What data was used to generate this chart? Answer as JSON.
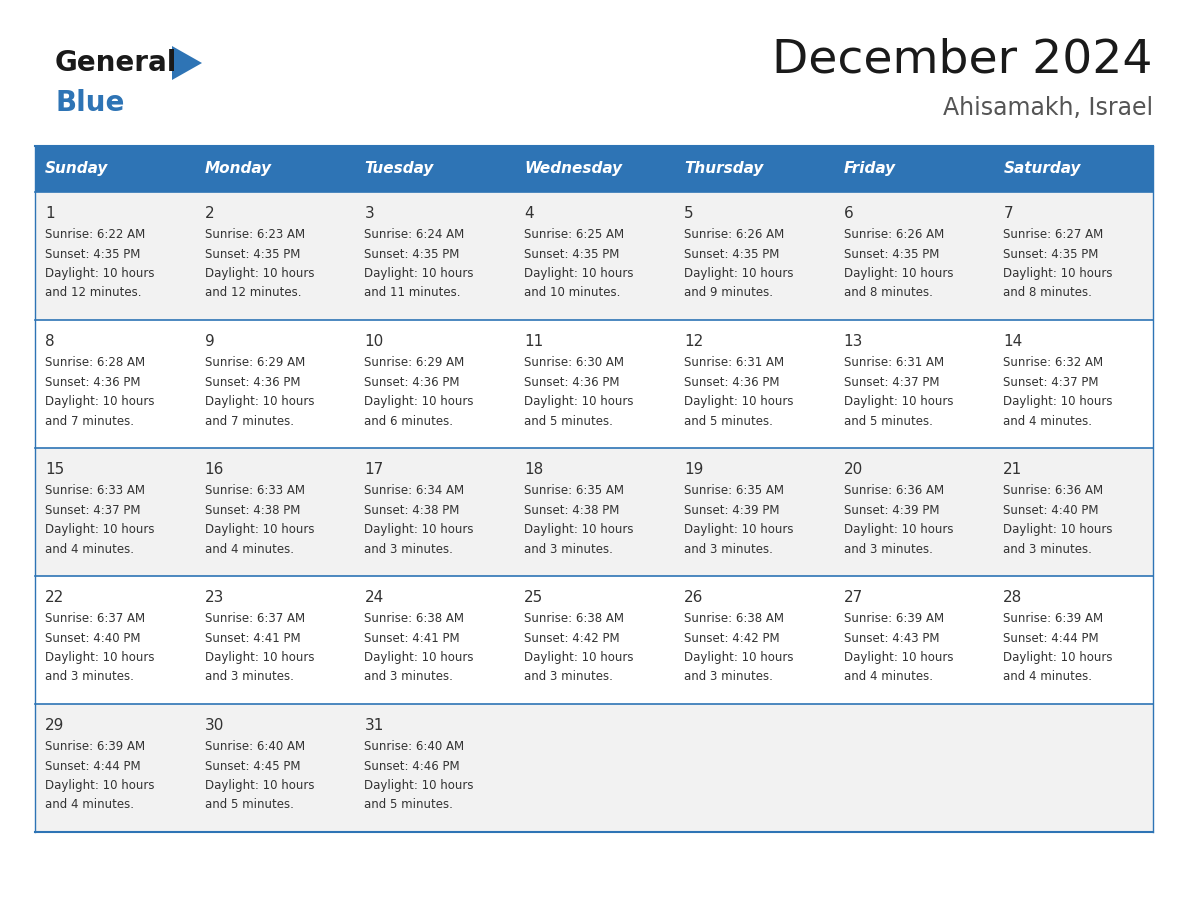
{
  "title": "December 2024",
  "subtitle": "Ahisamakh, Israel",
  "days_of_week": [
    "Sunday",
    "Monday",
    "Tuesday",
    "Wednesday",
    "Thursday",
    "Friday",
    "Saturday"
  ],
  "header_bg": "#2E74B5",
  "header_text": "#FFFFFF",
  "row_bg_odd": "#F2F2F2",
  "row_bg_even": "#FFFFFF",
  "cell_text_color": "#333333",
  "day_num_color": "#333333",
  "border_color": "#2E74B5",
  "title_color": "#1a1a1a",
  "subtitle_color": "#555555",
  "logo_general_color": "#1a1a1a",
  "logo_blue_color": "#2E74B5",
  "calendar_data": [
    [
      {
        "day": 1,
        "sunrise": "6:22 AM",
        "sunset": "4:35 PM",
        "daylight_hours": 10,
        "daylight_minutes": 12
      },
      {
        "day": 2,
        "sunrise": "6:23 AM",
        "sunset": "4:35 PM",
        "daylight_hours": 10,
        "daylight_minutes": 12
      },
      {
        "day": 3,
        "sunrise": "6:24 AM",
        "sunset": "4:35 PM",
        "daylight_hours": 10,
        "daylight_minutes": 11
      },
      {
        "day": 4,
        "sunrise": "6:25 AM",
        "sunset": "4:35 PM",
        "daylight_hours": 10,
        "daylight_minutes": 10
      },
      {
        "day": 5,
        "sunrise": "6:26 AM",
        "sunset": "4:35 PM",
        "daylight_hours": 10,
        "daylight_minutes": 9
      },
      {
        "day": 6,
        "sunrise": "6:26 AM",
        "sunset": "4:35 PM",
        "daylight_hours": 10,
        "daylight_minutes": 8
      },
      {
        "day": 7,
        "sunrise": "6:27 AM",
        "sunset": "4:35 PM",
        "daylight_hours": 10,
        "daylight_minutes": 8
      }
    ],
    [
      {
        "day": 8,
        "sunrise": "6:28 AM",
        "sunset": "4:36 PM",
        "daylight_hours": 10,
        "daylight_minutes": 7
      },
      {
        "day": 9,
        "sunrise": "6:29 AM",
        "sunset": "4:36 PM",
        "daylight_hours": 10,
        "daylight_minutes": 7
      },
      {
        "day": 10,
        "sunrise": "6:29 AM",
        "sunset": "4:36 PM",
        "daylight_hours": 10,
        "daylight_minutes": 6
      },
      {
        "day": 11,
        "sunrise": "6:30 AM",
        "sunset": "4:36 PM",
        "daylight_hours": 10,
        "daylight_minutes": 5
      },
      {
        "day": 12,
        "sunrise": "6:31 AM",
        "sunset": "4:36 PM",
        "daylight_hours": 10,
        "daylight_minutes": 5
      },
      {
        "day": 13,
        "sunrise": "6:31 AM",
        "sunset": "4:37 PM",
        "daylight_hours": 10,
        "daylight_minutes": 5
      },
      {
        "day": 14,
        "sunrise": "6:32 AM",
        "sunset": "4:37 PM",
        "daylight_hours": 10,
        "daylight_minutes": 4
      }
    ],
    [
      {
        "day": 15,
        "sunrise": "6:33 AM",
        "sunset": "4:37 PM",
        "daylight_hours": 10,
        "daylight_minutes": 4
      },
      {
        "day": 16,
        "sunrise": "6:33 AM",
        "sunset": "4:38 PM",
        "daylight_hours": 10,
        "daylight_minutes": 4
      },
      {
        "day": 17,
        "sunrise": "6:34 AM",
        "sunset": "4:38 PM",
        "daylight_hours": 10,
        "daylight_minutes": 3
      },
      {
        "day": 18,
        "sunrise": "6:35 AM",
        "sunset": "4:38 PM",
        "daylight_hours": 10,
        "daylight_minutes": 3
      },
      {
        "day": 19,
        "sunrise": "6:35 AM",
        "sunset": "4:39 PM",
        "daylight_hours": 10,
        "daylight_minutes": 3
      },
      {
        "day": 20,
        "sunrise": "6:36 AM",
        "sunset": "4:39 PM",
        "daylight_hours": 10,
        "daylight_minutes": 3
      },
      {
        "day": 21,
        "sunrise": "6:36 AM",
        "sunset": "4:40 PM",
        "daylight_hours": 10,
        "daylight_minutes": 3
      }
    ],
    [
      {
        "day": 22,
        "sunrise": "6:37 AM",
        "sunset": "4:40 PM",
        "daylight_hours": 10,
        "daylight_minutes": 3
      },
      {
        "day": 23,
        "sunrise": "6:37 AM",
        "sunset": "4:41 PM",
        "daylight_hours": 10,
        "daylight_minutes": 3
      },
      {
        "day": 24,
        "sunrise": "6:38 AM",
        "sunset": "4:41 PM",
        "daylight_hours": 10,
        "daylight_minutes": 3
      },
      {
        "day": 25,
        "sunrise": "6:38 AM",
        "sunset": "4:42 PM",
        "daylight_hours": 10,
        "daylight_minutes": 3
      },
      {
        "day": 26,
        "sunrise": "6:38 AM",
        "sunset": "4:42 PM",
        "daylight_hours": 10,
        "daylight_minutes": 3
      },
      {
        "day": 27,
        "sunrise": "6:39 AM",
        "sunset": "4:43 PM",
        "daylight_hours": 10,
        "daylight_minutes": 4
      },
      {
        "day": 28,
        "sunrise": "6:39 AM",
        "sunset": "4:44 PM",
        "daylight_hours": 10,
        "daylight_minutes": 4
      }
    ],
    [
      {
        "day": 29,
        "sunrise": "6:39 AM",
        "sunset": "4:44 PM",
        "daylight_hours": 10,
        "daylight_minutes": 4
      },
      {
        "day": 30,
        "sunrise": "6:40 AM",
        "sunset": "4:45 PM",
        "daylight_hours": 10,
        "daylight_minutes": 5
      },
      {
        "day": 31,
        "sunrise": "6:40 AM",
        "sunset": "4:46 PM",
        "daylight_hours": 10,
        "daylight_minutes": 5
      },
      null,
      null,
      null,
      null
    ]
  ],
  "fig_width": 11.88,
  "fig_height": 9.18,
  "dpi": 100
}
